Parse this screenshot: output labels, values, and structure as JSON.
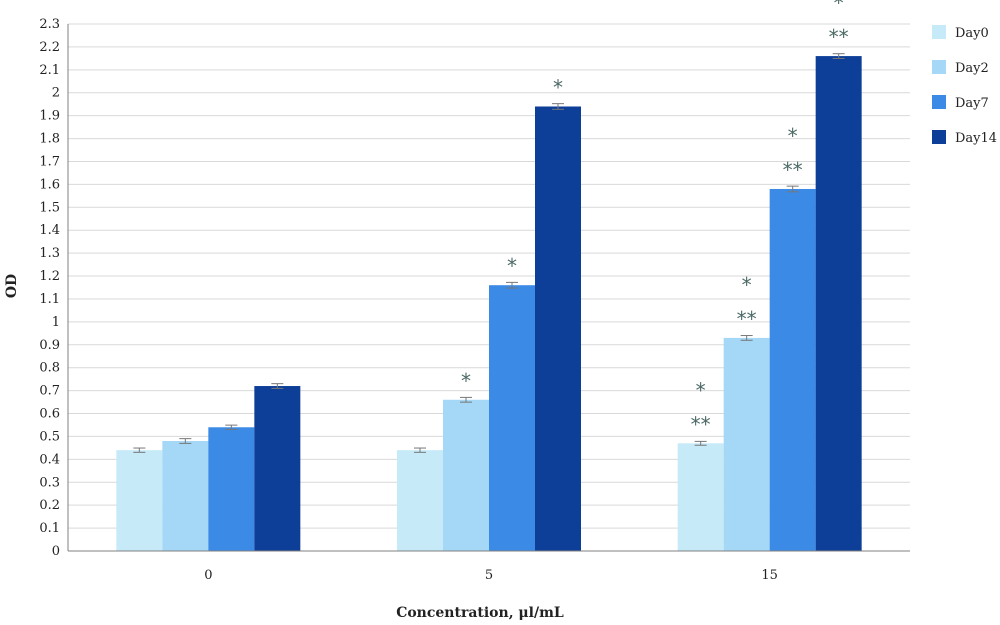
{
  "chart_data": {
    "type": "bar",
    "title": "",
    "xlabel": "Concentration, μl/mL",
    "ylabel": "OD",
    "ylim": [
      0,
      2.3
    ],
    "ytick_step": 0.1,
    "yticks": [
      "0",
      "0.1",
      "0.2",
      "0.3",
      "0.4",
      "0.5",
      "0.6",
      "0.7",
      "0.8",
      "0.9",
      "1",
      "1.1",
      "1.2",
      "1.3",
      "1.4",
      "1.5",
      "1.6",
      "1.7",
      "1.8",
      "1.9",
      "2",
      "2.1",
      "2.2",
      "2.3"
    ],
    "categories": [
      "0",
      "5",
      "15"
    ],
    "grid": true,
    "legend_position": "right",
    "series": [
      {
        "name": "Day0",
        "color": "#c6eaf8",
        "values": [
          0.44,
          0.44,
          0.47
        ],
        "errors": [
          0.005,
          0.005,
          0.004
        ],
        "annotations": [
          [],
          [],
          [
            "**",
            "*"
          ]
        ]
      },
      {
        "name": "Day2",
        "color": "#a4d8f6",
        "values": [
          0.48,
          0.66,
          0.93
        ],
        "errors": [
          0.006,
          0.006,
          0.006
        ],
        "annotations": [
          [],
          [
            "*"
          ],
          [
            "**",
            "*"
          ]
        ]
      },
      {
        "name": "Day7",
        "color": "#3a8ae6",
        "values": [
          0.54,
          1.16,
          1.58
        ],
        "errors": [
          0.005,
          0.008,
          0.008
        ],
        "annotations": [
          [],
          [
            "*"
          ],
          [
            "**",
            "*"
          ]
        ]
      },
      {
        "name": "Day14",
        "color": "#0e3f98",
        "values": [
          0.72,
          1.94,
          2.16
        ],
        "errors": [
          0.006,
          0.008,
          0.006
        ],
        "annotations": [
          [],
          [
            "*"
          ],
          [
            "**",
            "*"
          ]
        ]
      }
    ]
  }
}
